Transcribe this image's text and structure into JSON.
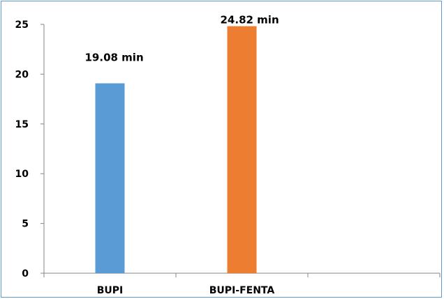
{
  "chart_data": {
    "type": "bar",
    "categories": [
      "BUPI",
      "BUPI-FENTA",
      ""
    ],
    "values": [
      19.08,
      24.82,
      null
    ],
    "data_labels": [
      "19.08 min",
      "24.82 min",
      ""
    ],
    "colors": [
      "#5b9bd5",
      "#ed7d31"
    ],
    "ylim": [
      0,
      25
    ],
    "yticks": [
      0,
      5,
      10,
      15,
      20,
      25
    ],
    "title": "",
    "xlabel": "",
    "ylabel": "",
    "grid": false,
    "legend": "none"
  }
}
